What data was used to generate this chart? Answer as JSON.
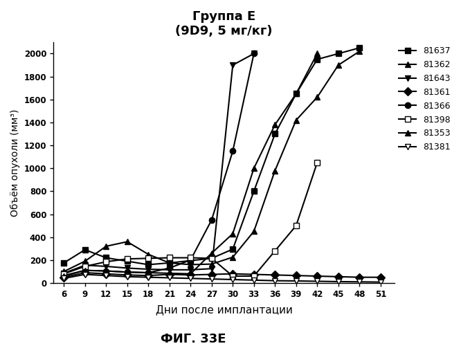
{
  "title_line1": "Группа E",
  "title_line2": "(9D9, 5 мг/кг)",
  "xlabel": "Дни после имплантации",
  "ylabel": "Объём опухоли (мм³)",
  "fig_label": "ФИГ. 33E",
  "xlim": [
    4.5,
    53
  ],
  "ylim": [
    0,
    2100
  ],
  "yticks": [
    0,
    200,
    400,
    600,
    800,
    1000,
    1200,
    1400,
    1600,
    1800,
    2000
  ],
  "xticks": [
    6,
    9,
    12,
    15,
    18,
    21,
    24,
    27,
    30,
    33,
    36,
    39,
    42,
    45,
    48,
    51
  ],
  "series": [
    {
      "label": "81637",
      "marker": "s",
      "marker_fill": "black",
      "x": [
        6,
        9,
        12,
        15,
        18,
        21,
        24,
        27,
        30,
        33,
        36,
        39,
        42,
        45,
        48
      ],
      "y": [
        175,
        290,
        220,
        190,
        160,
        175,
        195,
        215,
        295,
        800,
        1300,
        1650,
        1950,
        2000,
        2050
      ]
    },
    {
      "label": "81362",
      "marker": "^",
      "marker_fill": "black",
      "x": [
        6,
        9,
        12,
        15,
        18,
        21,
        24,
        27,
        30,
        33,
        36,
        39,
        42,
        45,
        48
      ],
      "y": [
        100,
        190,
        320,
        360,
        250,
        175,
        160,
        165,
        225,
        450,
        980,
        1420,
        1620,
        1900,
        2020
      ]
    },
    {
      "label": "81643",
      "marker": "v",
      "marker_fill": "black",
      "x": [
        6,
        9,
        12,
        15,
        18,
        21,
        24,
        27,
        30,
        33
      ],
      "y": [
        85,
        155,
        145,
        130,
        120,
        115,
        115,
        125,
        1900,
        2000
      ]
    },
    {
      "label": "81361",
      "marker": "D",
      "marker_fill": "black",
      "x": [
        6,
        9,
        12,
        15,
        18,
        21,
        24,
        27,
        30,
        33,
        36,
        39,
        42,
        45,
        48,
        51
      ],
      "y": [
        50,
        90,
        80,
        70,
        65,
        75,
        70,
        75,
        80,
        75,
        70,
        65,
        60,
        55,
        50,
        50
      ]
    },
    {
      "label": "81366",
      "marker": "o",
      "marker_fill": "black",
      "x": [
        6,
        9,
        12,
        15,
        18,
        21,
        24,
        27,
        30,
        33
      ],
      "y": [
        65,
        110,
        105,
        95,
        90,
        130,
        200,
        550,
        1150,
        2000
      ]
    },
    {
      "label": "81398",
      "marker": "s",
      "marker_fill": "white",
      "x": [
        6,
        9,
        12,
        15,
        18,
        21,
        24,
        27,
        30,
        33,
        36,
        39,
        42
      ],
      "y": [
        80,
        145,
        185,
        210,
        215,
        220,
        220,
        215,
        60,
        60,
        280,
        500,
        1050
      ]
    },
    {
      "label": "81353",
      "marker": "^",
      "marker_fill": "black",
      "x": [
        6,
        9,
        12,
        15,
        18,
        21,
        24,
        27,
        30,
        33,
        36,
        39,
        42
      ],
      "y": [
        60,
        110,
        105,
        95,
        90,
        85,
        80,
        260,
        430,
        1000,
        1380,
        1650,
        2000
      ]
    },
    {
      "label": "81381",
      "marker": "v",
      "marker_fill": "white",
      "x": [
        6,
        9,
        12,
        15,
        18,
        21,
        24,
        27,
        30,
        33,
        36,
        39,
        42,
        45,
        48,
        51
      ],
      "y": [
        40,
        75,
        65,
        55,
        50,
        45,
        40,
        35,
        30,
        25,
        20,
        18,
        15,
        12,
        10,
        8
      ]
    }
  ]
}
